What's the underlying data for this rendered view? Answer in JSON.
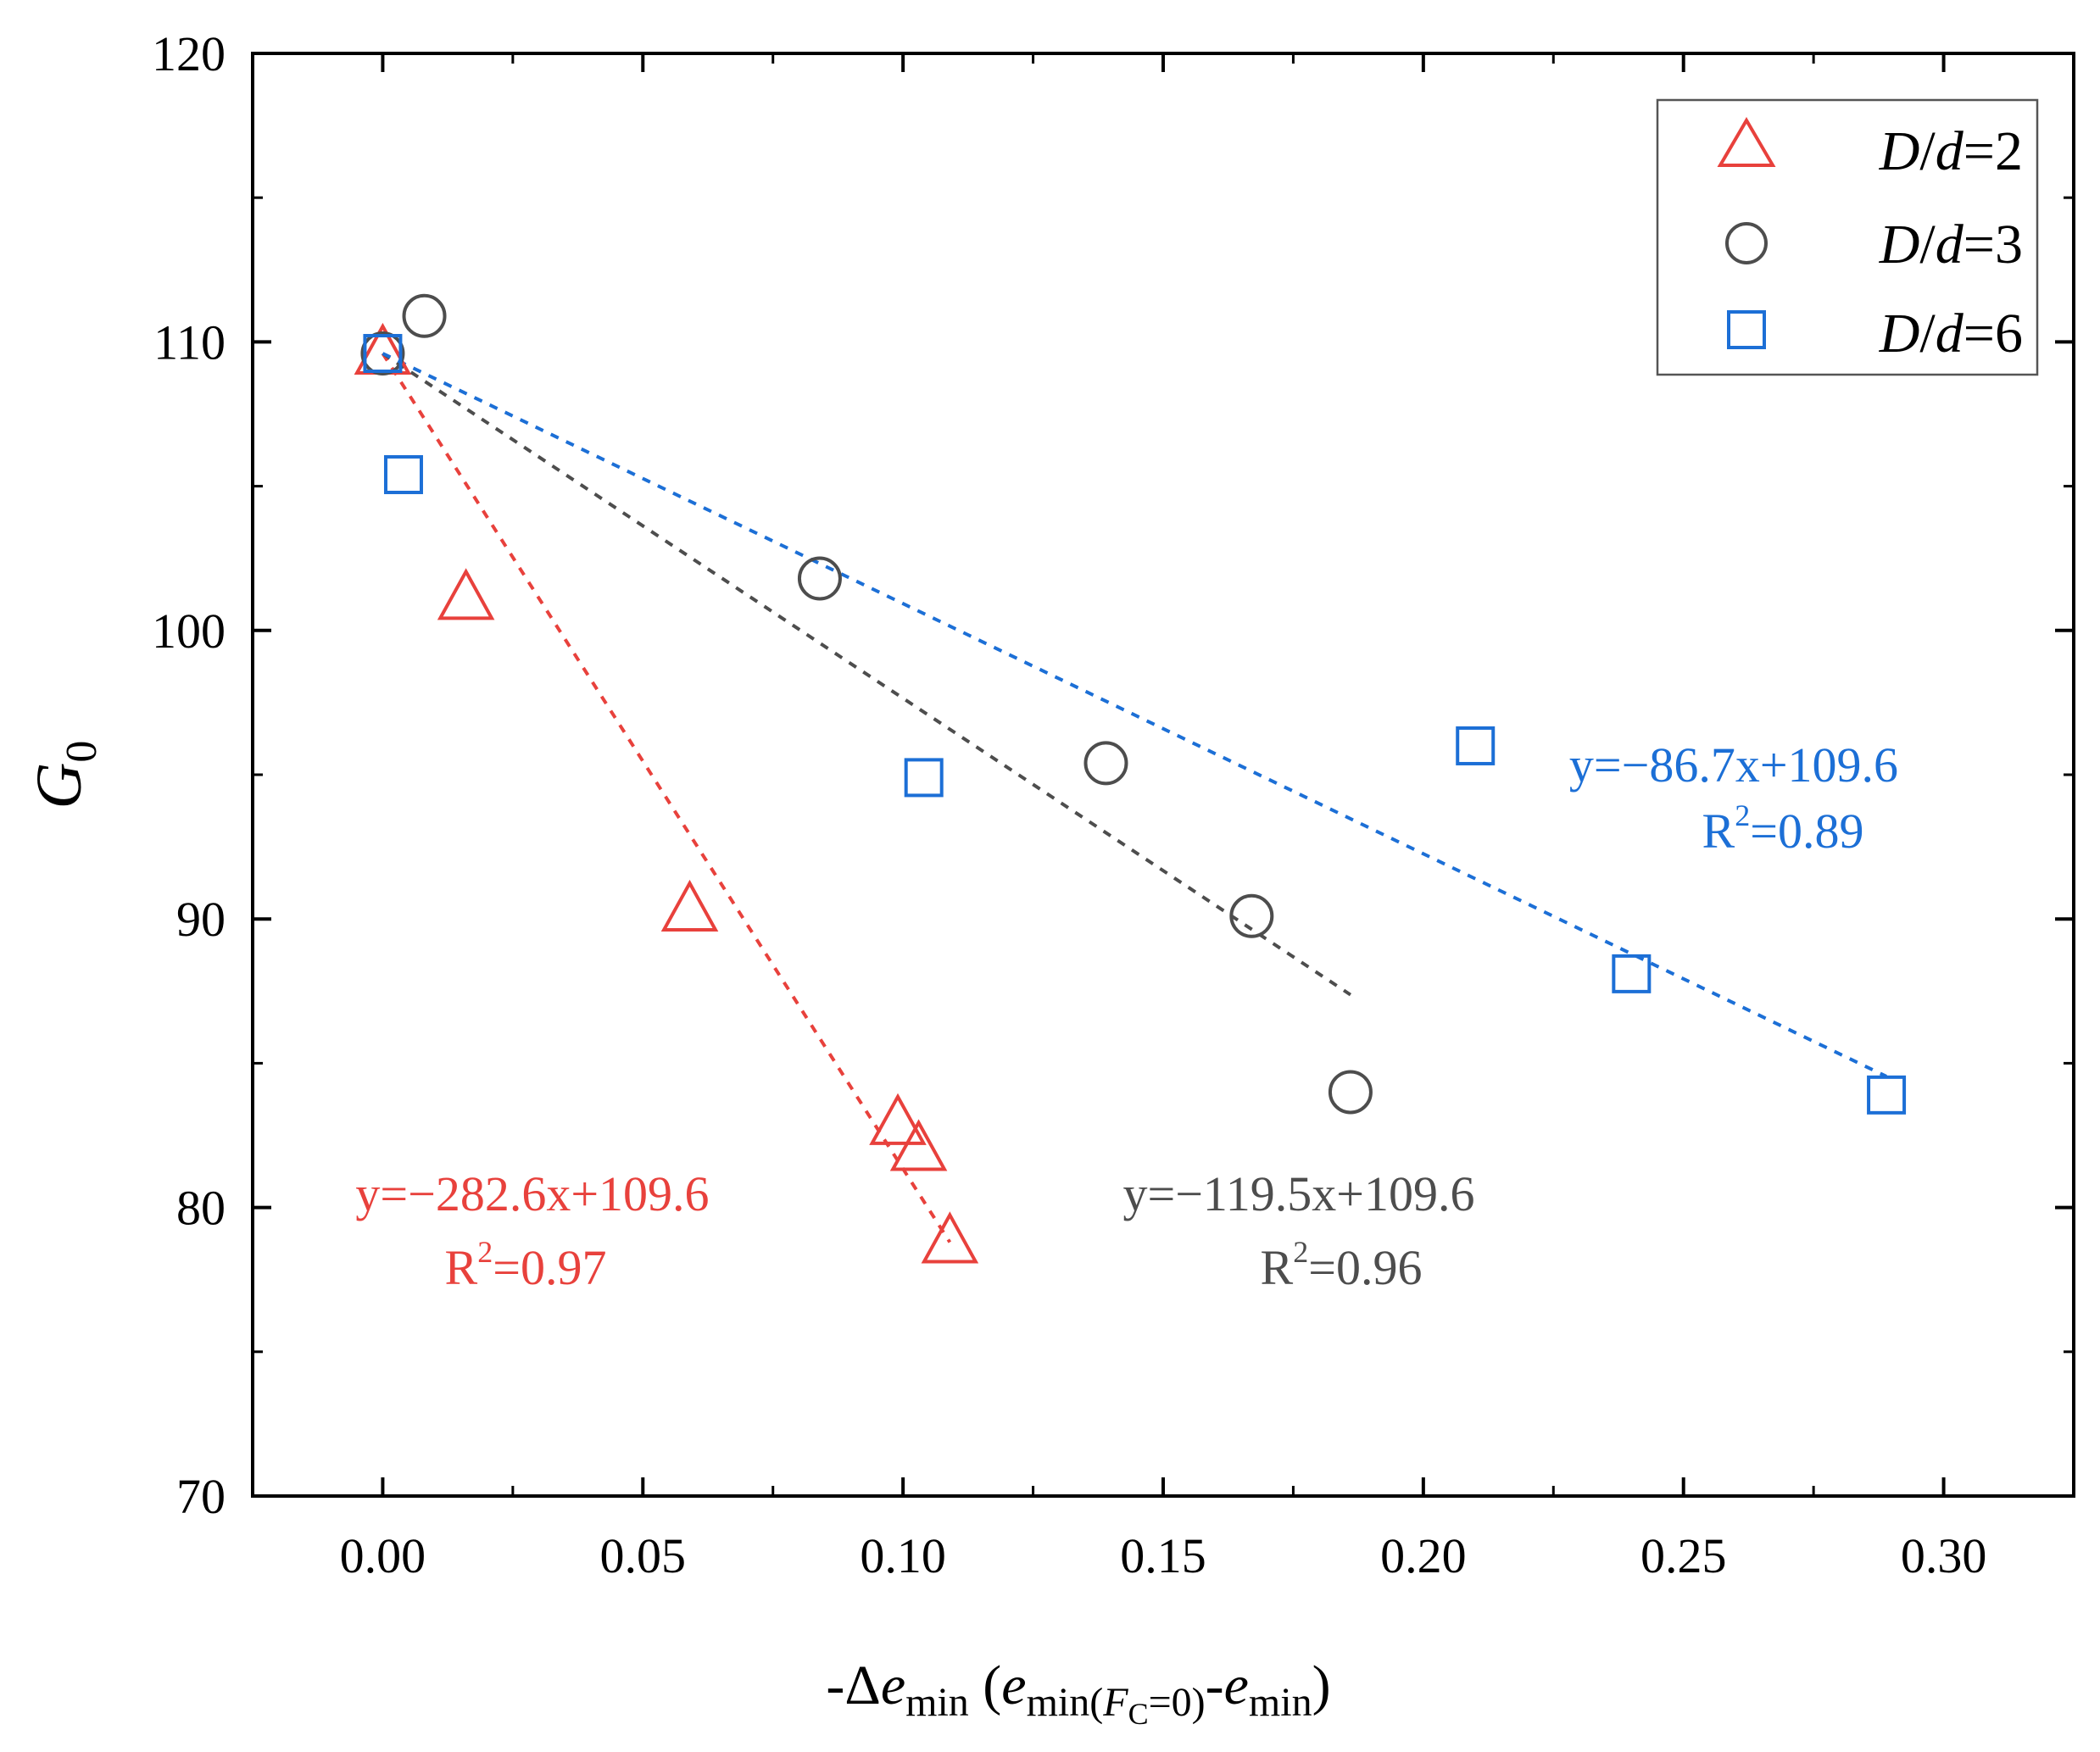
{
  "chart_data": {
    "type": "scatter",
    "xlabel": {
      "prefix": "-Δ",
      "e": "e",
      "min": "min",
      "paren_open": " (",
      "e2": "e",
      "min_f": "min(",
      "F": "F",
      "C": "C",
      "eq0": "=0)",
      "dash": "-",
      "e3": "e",
      "min2": "min",
      "paren_close": ")"
    },
    "ylabel": {
      "G": "G",
      "sub": "0"
    },
    "xlim": [
      -0.025,
      0.325
    ],
    "ylim": [
      70,
      120
    ],
    "x_ticks": [
      0.0,
      0.05,
      0.1,
      0.15,
      0.2,
      0.25,
      0.3
    ],
    "x_tick_labels": [
      "0.00",
      "0.05",
      "0.10",
      "0.15",
      "0.20",
      "0.25",
      "0.30"
    ],
    "y_ticks": [
      70,
      80,
      90,
      100,
      110,
      120
    ],
    "y_tick_labels": [
      "70",
      "80",
      "90",
      "100",
      "110",
      "120"
    ],
    "legend_position": "top-right",
    "series": [
      {
        "name": "D/d=2",
        "legend": {
          "D": "D",
          "slash": "/",
          "d": "d",
          "val": "=2"
        },
        "marker": "triangle",
        "color": "#e8413c",
        "x": [
          0.0,
          0.016,
          0.059,
          0.099,
          0.103,
          0.109
        ],
        "y": [
          109.6,
          101.1,
          90.3,
          82.9,
          82.0,
          78.8
        ],
        "fit": {
          "slope": -282.6,
          "intercept": 109.6,
          "x_range": [
            0.0,
            0.109
          ]
        },
        "equation": "y=−282.6x+109.6",
        "r2": {
          "R": "R",
          "sup": "2",
          "val": "=0.97"
        }
      },
      {
        "name": "D/d=3",
        "legend": {
          "D": "D",
          "slash": "/",
          "d": "d",
          "val": "=3"
        },
        "marker": "circle",
        "color": "#4d4d4d",
        "x": [
          0.0,
          0.008,
          0.084,
          0.139,
          0.167,
          0.186
        ],
        "y": [
          109.6,
          110.9,
          101.8,
          95.4,
          90.1,
          84.0
        ],
        "fit": {
          "slope": -119.5,
          "intercept": 109.6,
          "x_range": [
            0.0,
            0.186
          ]
        },
        "equation": "y=−119.5x+109.6",
        "r2": {
          "R": "R",
          "sup": "2",
          "val": "=0.96"
        }
      },
      {
        "name": "D/d=6",
        "legend": {
          "D": "D",
          "slash": "/",
          "d": "d",
          "val": "=6"
        },
        "marker": "square",
        "color": "#1c6fd6",
        "x": [
          0.0,
          0.004,
          0.104,
          0.21,
          0.24,
          0.289
        ],
        "y": [
          109.6,
          105.4,
          94.9,
          96.0,
          88.1,
          83.9
        ],
        "fit": {
          "slope": -86.7,
          "intercept": 109.6,
          "x_range": [
            0.0,
            0.289
          ]
        },
        "equation": "y=−86.7x+109.6",
        "r2": {
          "R": "R",
          "sup": "2",
          "val": "=0.89"
        }
      }
    ]
  }
}
